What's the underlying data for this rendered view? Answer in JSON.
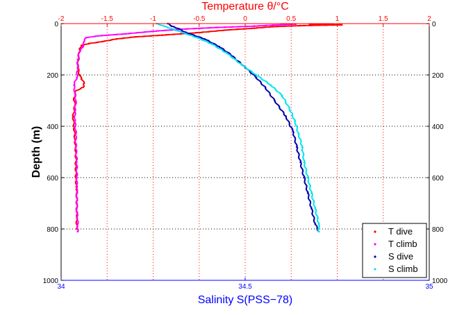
{
  "chart_data": {
    "type": "scatter",
    "title": "",
    "top_axis": {
      "label": "Temperature θ/°C",
      "range": [
        -2,
        2
      ],
      "ticks": [
        -2,
        -1.5,
        -1,
        -0.5,
        0,
        0.5,
        1,
        1.5,
        2
      ],
      "tick_labels": [
        "-2",
        "-1.5",
        "-1",
        "-0.5",
        "0",
        "0.5",
        "1",
        "1.5",
        "2"
      ],
      "color": "#ff0000"
    },
    "bottom_axis": {
      "label": "Salinity S(PSS−78)",
      "range": [
        34,
        35
      ],
      "ticks": [
        34,
        34.5,
        35
      ],
      "tick_labels": [
        "34",
        "34.5",
        "35"
      ],
      "color": "#0000ff"
    },
    "y_axis": {
      "label": "Depth (m)",
      "range": [
        0,
        1000
      ],
      "reversed": true,
      "ticks": [
        0,
        200,
        400,
        600,
        800,
        1000
      ],
      "tick_labels": [
        "0",
        "200",
        "400",
        "600",
        "800",
        "1000"
      ]
    },
    "grid": true,
    "grid_vertical_at_temperature": [
      -1.5,
      -1,
      -0.5,
      0,
      0.5,
      1,
      1.5
    ],
    "grid_horizontal_at_depth": [
      200,
      400,
      600,
      800
    ],
    "legend_position": "bottom-right",
    "series": [
      {
        "name": "T dive",
        "axis": "temperature",
        "color": "#ff0000",
        "points": [
          [
            0.7,
            2
          ],
          [
            0.9,
            4
          ],
          [
            1.05,
            5
          ],
          [
            0.6,
            8
          ],
          [
            0.3,
            12
          ],
          [
            0.1,
            18
          ],
          [
            -0.2,
            25
          ],
          [
            -0.5,
            35
          ],
          [
            -0.9,
            45
          ],
          [
            -1.2,
            52
          ],
          [
            -1.4,
            60
          ],
          [
            -1.55,
            70
          ],
          [
            -1.7,
            78
          ],
          [
            -1.78,
            85
          ],
          [
            -1.8,
            100
          ],
          [
            -1.81,
            130
          ],
          [
            -1.82,
            170
          ],
          [
            -1.8,
            200
          ],
          [
            -1.78,
            215
          ],
          [
            -1.75,
            232
          ],
          [
            -1.76,
            248
          ],
          [
            -1.84,
            262
          ],
          [
            -1.86,
            290
          ],
          [
            -1.85,
            320
          ],
          [
            -1.87,
            360
          ],
          [
            -1.86,
            400
          ],
          [
            -1.85,
            450
          ],
          [
            -1.84,
            500
          ],
          [
            -1.84,
            550
          ],
          [
            -1.84,
            600
          ],
          [
            -1.83,
            650
          ],
          [
            -1.83,
            700
          ],
          [
            -1.83,
            750
          ],
          [
            -1.83,
            800
          ]
        ]
      },
      {
        "name": "T climb",
        "axis": "temperature",
        "color": "#ff00ff",
        "points": [
          [
            0.55,
            2
          ],
          [
            0.3,
            6
          ],
          [
            0.1,
            10
          ],
          [
            -0.3,
            15
          ],
          [
            -0.7,
            22
          ],
          [
            -1.0,
            30
          ],
          [
            -1.3,
            40
          ],
          [
            -1.6,
            48
          ],
          [
            -1.73,
            55
          ],
          [
            -1.75,
            70
          ],
          [
            -1.76,
            90
          ],
          [
            -1.8,
            110
          ],
          [
            -1.82,
            140
          ],
          [
            -1.82,
            175
          ],
          [
            -1.83,
            210
          ],
          [
            -1.86,
            240
          ],
          [
            -1.85,
            270
          ],
          [
            -1.84,
            300
          ],
          [
            -1.85,
            340
          ],
          [
            -1.85,
            380
          ],
          [
            -1.84,
            430
          ],
          [
            -1.84,
            480
          ],
          [
            -1.83,
            540
          ],
          [
            -1.83,
            600
          ],
          [
            -1.83,
            660
          ],
          [
            -1.83,
            720
          ],
          [
            -1.82,
            780
          ],
          [
            -1.82,
            810
          ]
        ]
      },
      {
        "name": "S dive",
        "axis": "salinity",
        "color": "#0000b0",
        "points": [
          [
            34.29,
            0
          ],
          [
            34.3,
            10
          ],
          [
            34.32,
            20
          ],
          [
            34.33,
            30
          ],
          [
            34.35,
            40
          ],
          [
            34.39,
            60
          ],
          [
            34.43,
            90
          ],
          [
            34.46,
            120
          ],
          [
            34.5,
            170
          ],
          [
            34.53,
            210
          ],
          [
            34.555,
            250
          ],
          [
            34.58,
            300
          ],
          [
            34.61,
            360
          ],
          [
            34.63,
            420
          ],
          [
            34.64,
            480
          ],
          [
            34.65,
            540
          ],
          [
            34.66,
            600
          ],
          [
            34.67,
            660
          ],
          [
            34.68,
            720
          ],
          [
            34.69,
            780
          ],
          [
            34.7,
            810
          ]
        ]
      },
      {
        "name": "S climb",
        "axis": "salinity",
        "color": "#00e5ee",
        "points": [
          [
            34.26,
            0
          ],
          [
            34.28,
            10
          ],
          [
            34.3,
            20
          ],
          [
            34.33,
            35
          ],
          [
            34.37,
            55
          ],
          [
            34.41,
            80
          ],
          [
            34.45,
            115
          ],
          [
            34.49,
            160
          ],
          [
            34.53,
            200
          ],
          [
            34.57,
            240
          ],
          [
            34.6,
            280
          ],
          [
            34.62,
            330
          ],
          [
            34.635,
            380
          ],
          [
            34.645,
            430
          ],
          [
            34.655,
            480
          ],
          [
            34.66,
            540
          ],
          [
            34.67,
            600
          ],
          [
            34.68,
            660
          ],
          [
            34.69,
            720
          ],
          [
            34.7,
            780
          ],
          [
            34.7,
            810
          ]
        ]
      }
    ]
  }
}
